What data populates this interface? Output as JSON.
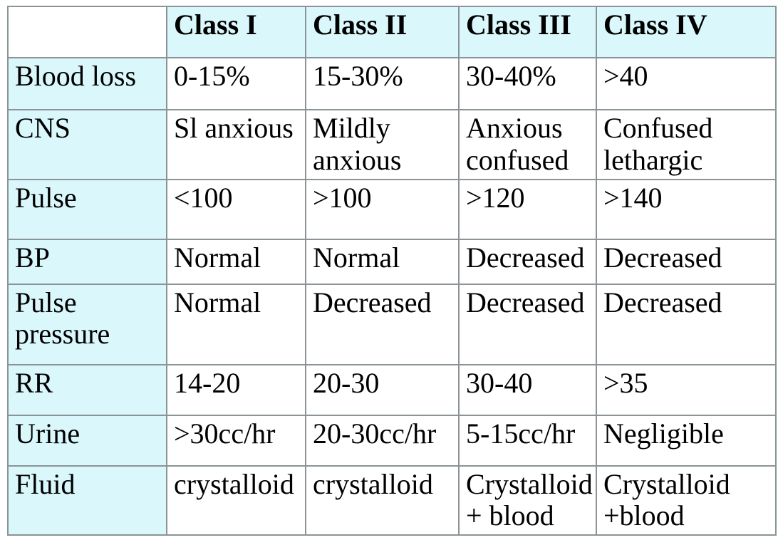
{
  "chart_data": {
    "type": "table",
    "title": "",
    "columns": [
      "",
      "Class I",
      "Class II",
      "Class III",
      "Class IV"
    ],
    "rows": [
      {
        "label": "Blood loss",
        "values": [
          "0-15%",
          "15-30%",
          "30-40%",
          ">40"
        ]
      },
      {
        "label": "CNS",
        "values": [
          "Sl anxious",
          "Mildly anxious",
          "Anxious confused",
          "Confused lethargic"
        ]
      },
      {
        "label": "Pulse",
        "values": [
          "<100",
          ">100",
          ">120",
          ">140"
        ]
      },
      {
        "label": "BP",
        "values": [
          "Normal",
          "Normal",
          "Decreased",
          "Decreased"
        ]
      },
      {
        "label": "Pulse pressure",
        "values": [
          "Normal",
          "Decreased",
          "Decreased",
          "Decreased"
        ]
      },
      {
        "label": "RR",
        "values": [
          "14-20",
          "20-30",
          "30-40",
          ">35"
        ]
      },
      {
        "label": "Urine",
        "values": [
          ">30cc/hr",
          "20-30cc/hr",
          "5-15cc/hr",
          "Negligible"
        ]
      },
      {
        "label": "Fluid",
        "values": [
          "crystalloid",
          "crystalloid",
          "Crystalloid + blood",
          "Crystalloid +blood"
        ]
      }
    ],
    "layout": {
      "grid": "full-borders",
      "header_row_shaded": true,
      "label_column_shaded": true,
      "corner_cell_shaded": false
    }
  },
  "colors": {
    "header_fill": "#daf7fb",
    "label_fill": "#daf7fb",
    "cell_fill": "#ffffff",
    "border_color": "#8b9396",
    "outer_border_color": "#6f7779",
    "text_color": "#000000",
    "page_bg": "#ffffff"
  }
}
